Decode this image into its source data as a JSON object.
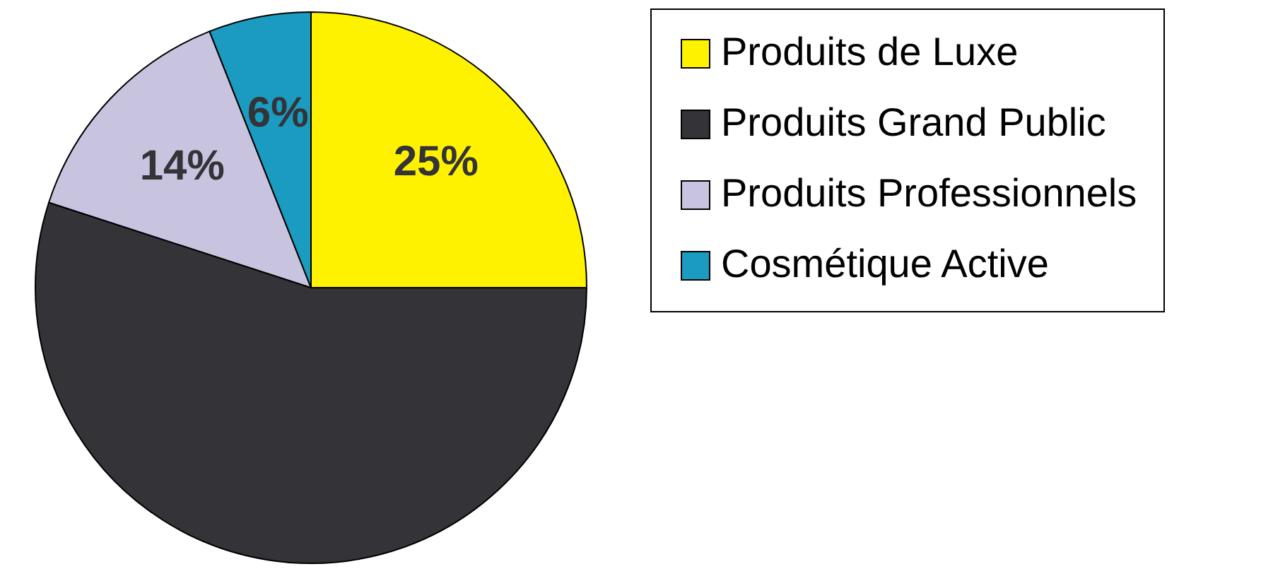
{
  "chart_data": {
    "type": "pie",
    "categories": [
      "Produits de Luxe",
      "Produits Grand Public",
      "Produits Professionnels",
      "Cosmétique Active"
    ],
    "values": [
      25,
      55,
      14,
      6
    ],
    "colors": [
      "#fff200",
      "#333338",
      "#c8c4e0",
      "#1a9bbf"
    ],
    "value_labels": [
      "25%",
      null,
      "14%",
      "6%"
    ],
    "legend": "right"
  }
}
